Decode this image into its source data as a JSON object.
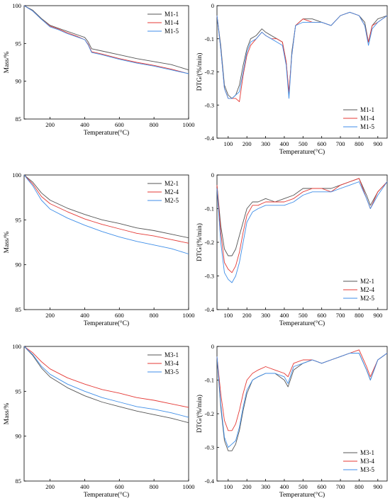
{
  "colors": {
    "series_1": "#555555",
    "series_4": "#e53935",
    "series_5": "#3f8ee8"
  },
  "chart_data": [
    {
      "type": "line",
      "title": "",
      "xlabel": "Temperature(°C)",
      "ylabel": "Mass/%",
      "xlim": [
        50,
        1000
      ],
      "ylim": [
        85,
        100
      ],
      "xticks": [
        200,
        400,
        600,
        800,
        1000
      ],
      "yticks": [
        85,
        90,
        95,
        100
      ],
      "legend_position": "top-right",
      "grid": false,
      "series": [
        {
          "name": "M1-1",
          "color_key": "series_1",
          "x": [
            50,
            100,
            150,
            200,
            250,
            300,
            350,
            400,
            420,
            440,
            500,
            600,
            700,
            800,
            900,
            1000
          ],
          "y": [
            100,
            99.4,
            98.3,
            97.4,
            97.0,
            96.6,
            96.2,
            95.8,
            95.2,
            94.3,
            94.0,
            93.5,
            93.0,
            92.6,
            92.2,
            91.5
          ]
        },
        {
          "name": "M1-4",
          "color_key": "series_4",
          "x": [
            50,
            100,
            150,
            200,
            250,
            300,
            350,
            400,
            420,
            440,
            500,
            600,
            700,
            800,
            900,
            1000
          ],
          "y": [
            100,
            99.3,
            98.2,
            97.3,
            96.9,
            96.4,
            96.0,
            95.5,
            94.9,
            93.9,
            93.6,
            93.0,
            92.5,
            92.1,
            91.6,
            91.0
          ]
        },
        {
          "name": "M1-5",
          "color_key": "series_5",
          "x": [
            50,
            100,
            150,
            200,
            250,
            300,
            350,
            400,
            420,
            440,
            500,
            600,
            700,
            800,
            900,
            1000
          ],
          "y": [
            100,
            99.3,
            98.2,
            97.2,
            96.8,
            96.3,
            95.9,
            95.5,
            94.8,
            93.8,
            93.5,
            92.9,
            92.4,
            92.0,
            91.5,
            91.0
          ]
        }
      ]
    },
    {
      "type": "line",
      "title": "",
      "xlabel": "Temperature(°C)",
      "ylabel": "DTG/(%/min)",
      "xlim": [
        40,
        950
      ],
      "ylim": [
        -0.4,
        0
      ],
      "xticks": [
        100,
        200,
        300,
        400,
        500,
        600,
        700,
        800,
        900
      ],
      "yticks": [
        0,
        -0.1,
        -0.2,
        -0.3,
        -0.4
      ],
      "legend_position": "bottom-right",
      "grid": false,
      "series": [
        {
          "name": "M1-1",
          "color_key": "series_1",
          "x": [
            40,
            60,
            80,
            100,
            120,
            140,
            160,
            180,
            200,
            220,
            250,
            280,
            300,
            330,
            360,
            390,
            410,
            425,
            440,
            460,
            500,
            550,
            600,
            650,
            700,
            750,
            800,
            830,
            850,
            870,
            900,
            950
          ],
          "y": [
            -0.03,
            -0.12,
            -0.24,
            -0.27,
            -0.28,
            -0.27,
            -0.24,
            -0.18,
            -0.13,
            -0.1,
            -0.09,
            -0.07,
            -0.08,
            -0.09,
            -0.1,
            -0.11,
            -0.17,
            -0.27,
            -0.14,
            -0.06,
            -0.04,
            -0.04,
            -0.05,
            -0.06,
            -0.03,
            -0.02,
            -0.03,
            -0.05,
            -0.11,
            -0.06,
            -0.04,
            -0.03
          ]
        },
        {
          "name": "M1-4",
          "color_key": "series_4",
          "x": [
            40,
            60,
            80,
            100,
            120,
            140,
            160,
            180,
            200,
            220,
            250,
            280,
            300,
            330,
            360,
            390,
            410,
            425,
            440,
            460,
            500,
            550,
            600,
            650,
            700,
            750,
            800,
            830,
            850,
            870,
            900,
            950
          ],
          "y": [
            -0.03,
            -0.13,
            -0.25,
            -0.28,
            -0.28,
            -0.28,
            -0.29,
            -0.21,
            -0.15,
            -0.12,
            -0.1,
            -0.08,
            -0.09,
            -0.1,
            -0.1,
            -0.11,
            -0.17,
            -0.26,
            -0.15,
            -0.06,
            -0.04,
            -0.05,
            -0.05,
            -0.06,
            -0.03,
            -0.02,
            -0.03,
            -0.06,
            -0.11,
            -0.06,
            -0.05,
            -0.03
          ]
        },
        {
          "name": "M1-5",
          "color_key": "series_5",
          "x": [
            40,
            60,
            80,
            100,
            120,
            140,
            160,
            180,
            200,
            220,
            250,
            280,
            300,
            330,
            360,
            390,
            410,
            425,
            440,
            460,
            500,
            550,
            600,
            650,
            700,
            750,
            800,
            830,
            850,
            870,
            900,
            950
          ],
          "y": [
            -0.03,
            -0.13,
            -0.25,
            -0.28,
            -0.28,
            -0.27,
            -0.26,
            -0.2,
            -0.14,
            -0.11,
            -0.1,
            -0.08,
            -0.09,
            -0.1,
            -0.11,
            -0.12,
            -0.18,
            -0.28,
            -0.15,
            -0.06,
            -0.05,
            -0.05,
            -0.05,
            -0.06,
            -0.03,
            -0.02,
            -0.03,
            -0.06,
            -0.12,
            -0.07,
            -0.05,
            -0.03
          ]
        }
      ]
    },
    {
      "type": "line",
      "title": "",
      "xlabel": "Temperature(°C)",
      "ylabel": "Mass/%",
      "xlim": [
        50,
        1000
      ],
      "ylim": [
        85,
        100
      ],
      "xticks": [
        200,
        400,
        600,
        800,
        1000
      ],
      "yticks": [
        85,
        90,
        95,
        100
      ],
      "legend_position": "top-right",
      "grid": false,
      "series": [
        {
          "name": "M2-1",
          "color_key": "series_1",
          "x": [
            50,
            100,
            150,
            200,
            300,
            400,
            500,
            600,
            700,
            800,
            900,
            1000
          ],
          "y": [
            100,
            99.2,
            98.0,
            97.2,
            96.3,
            95.6,
            95.0,
            94.6,
            94.1,
            93.8,
            93.4,
            93.0
          ]
        },
        {
          "name": "M2-4",
          "color_key": "series_4",
          "x": [
            50,
            100,
            150,
            200,
            300,
            400,
            500,
            600,
            700,
            800,
            900,
            1000
          ],
          "y": [
            100,
            99.0,
            97.6,
            96.8,
            95.9,
            95.1,
            94.5,
            94.0,
            93.5,
            93.2,
            92.8,
            92.4
          ]
        },
        {
          "name": "M2-5",
          "color_key": "series_5",
          "x": [
            50,
            100,
            150,
            200,
            300,
            400,
            500,
            600,
            700,
            800,
            900,
            1000
          ],
          "y": [
            100,
            98.8,
            97.2,
            96.2,
            95.2,
            94.4,
            93.7,
            93.1,
            92.6,
            92.2,
            91.8,
            91.2
          ]
        }
      ]
    },
    {
      "type": "line",
      "title": "",
      "xlabel": "Temperature(°C)",
      "ylabel": "DTG/(%/min)",
      "xlim": [
        40,
        950
      ],
      "ylim": [
        -0.4,
        0
      ],
      "xticks": [
        100,
        200,
        300,
        400,
        500,
        600,
        700,
        800,
        900
      ],
      "yticks": [
        0,
        -0.1,
        -0.2,
        -0.3,
        -0.4
      ],
      "legend_position": "bottom-right",
      "grid": false,
      "series": [
        {
          "name": "M2-1",
          "color_key": "series_1",
          "x": [
            40,
            60,
            80,
            100,
            120,
            140,
            160,
            180,
            200,
            230,
            260,
            300,
            350,
            400,
            450,
            500,
            550,
            600,
            650,
            700,
            750,
            800,
            840,
            860,
            900,
            950
          ],
          "y": [
            -0.03,
            -0.15,
            -0.22,
            -0.24,
            -0.24,
            -0.22,
            -0.18,
            -0.14,
            -0.1,
            -0.08,
            -0.08,
            -0.07,
            -0.08,
            -0.07,
            -0.06,
            -0.04,
            -0.04,
            -0.04,
            -0.04,
            -0.03,
            -0.02,
            -0.01,
            -0.06,
            -0.09,
            -0.05,
            -0.02
          ]
        },
        {
          "name": "M2-4",
          "color_key": "series_4",
          "x": [
            40,
            60,
            80,
            100,
            120,
            140,
            160,
            180,
            200,
            230,
            260,
            300,
            350,
            400,
            450,
            500,
            550,
            600,
            650,
            700,
            750,
            800,
            840,
            860,
            900,
            950
          ],
          "y": [
            -0.03,
            -0.17,
            -0.26,
            -0.28,
            -0.29,
            -0.27,
            -0.23,
            -0.17,
            -0.12,
            -0.09,
            -0.09,
            -0.08,
            -0.08,
            -0.08,
            -0.07,
            -0.05,
            -0.04,
            -0.04,
            -0.05,
            -0.03,
            -0.02,
            -0.01,
            -0.07,
            -0.1,
            -0.05,
            -0.02
          ]
        },
        {
          "name": "M2-5",
          "color_key": "series_5",
          "x": [
            40,
            60,
            80,
            100,
            120,
            140,
            160,
            180,
            200,
            230,
            260,
            300,
            350,
            400,
            450,
            500,
            550,
            600,
            650,
            700,
            750,
            800,
            840,
            860,
            900,
            950
          ],
          "y": [
            -0.04,
            -0.2,
            -0.29,
            -0.31,
            -0.32,
            -0.3,
            -0.26,
            -0.2,
            -0.14,
            -0.11,
            -0.1,
            -0.09,
            -0.09,
            -0.09,
            -0.08,
            -0.06,
            -0.05,
            -0.05,
            -0.05,
            -0.04,
            -0.03,
            -0.02,
            -0.07,
            -0.1,
            -0.06,
            -0.02
          ]
        }
      ]
    },
    {
      "type": "line",
      "title": "",
      "xlabel": "Temperature(°C)",
      "ylabel": "Mass/%",
      "xlim": [
        50,
        1000
      ],
      "ylim": [
        85,
        100
      ],
      "xticks": [
        200,
        400,
        600,
        800,
        1000
      ],
      "yticks": [
        85,
        90,
        95,
        100
      ],
      "legend_position": "top-right",
      "grid": false,
      "series": [
        {
          "name": "M3-1",
          "color_key": "series_1",
          "x": [
            50,
            100,
            150,
            200,
            300,
            400,
            500,
            600,
            700,
            800,
            900,
            1000
          ],
          "y": [
            100,
            99.0,
            97.6,
            96.6,
            95.4,
            94.5,
            93.8,
            93.3,
            92.8,
            92.4,
            92.0,
            91.5
          ]
        },
        {
          "name": "M3-4",
          "color_key": "series_4",
          "x": [
            50,
            100,
            150,
            200,
            300,
            400,
            500,
            600,
            700,
            800,
            900,
            1000
          ],
          "y": [
            100,
            99.3,
            98.3,
            97.5,
            96.5,
            95.8,
            95.2,
            94.8,
            94.3,
            94.0,
            93.6,
            93.2
          ]
        },
        {
          "name": "M3-5",
          "color_key": "series_5",
          "x": [
            50,
            100,
            150,
            200,
            300,
            400,
            500,
            600,
            700,
            800,
            900,
            1000
          ],
          "y": [
            100,
            99.1,
            97.8,
            96.9,
            95.8,
            95.0,
            94.3,
            93.8,
            93.3,
            93.0,
            92.6,
            92.1
          ]
        }
      ]
    },
    {
      "type": "line",
      "title": "",
      "xlabel": "Temperature(°C)",
      "ylabel": "DTG/(%/min)",
      "xlim": [
        40,
        950
      ],
      "ylim": [
        -0.4,
        0
      ],
      "xticks": [
        100,
        200,
        300,
        400,
        500,
        600,
        700,
        800,
        900
      ],
      "yticks": [
        0,
        -0.1,
        -0.2,
        -0.3,
        -0.4
      ],
      "legend_position": "bottom-right",
      "grid": false,
      "series": [
        {
          "name": "M3-1",
          "color_key": "series_1",
          "x": [
            40,
            60,
            80,
            100,
            120,
            140,
            160,
            180,
            200,
            230,
            260,
            300,
            350,
            400,
            420,
            450,
            500,
            550,
            600,
            650,
            700,
            750,
            800,
            840,
            860,
            900,
            950
          ],
          "y": [
            -0.03,
            -0.18,
            -0.28,
            -0.31,
            -0.31,
            -0.29,
            -0.25,
            -0.19,
            -0.14,
            -0.1,
            -0.09,
            -0.08,
            -0.08,
            -0.1,
            -0.12,
            -0.07,
            -0.05,
            -0.04,
            -0.05,
            -0.04,
            -0.03,
            -0.02,
            -0.02,
            -0.07,
            -0.1,
            -0.04,
            -0.02
          ]
        },
        {
          "name": "M3-4",
          "color_key": "series_4",
          "x": [
            40,
            60,
            80,
            100,
            120,
            140,
            160,
            180,
            200,
            230,
            260,
            300,
            350,
            400,
            420,
            450,
            500,
            550,
            600,
            650,
            700,
            750,
            800,
            840,
            860,
            900,
            950
          ],
          "y": [
            -0.03,
            -0.14,
            -0.22,
            -0.25,
            -0.25,
            -0.23,
            -0.19,
            -0.14,
            -0.1,
            -0.08,
            -0.07,
            -0.06,
            -0.07,
            -0.08,
            -0.09,
            -0.05,
            -0.04,
            -0.04,
            -0.05,
            -0.04,
            -0.03,
            -0.02,
            -0.01,
            -0.06,
            -0.09,
            -0.04,
            -0.02
          ]
        },
        {
          "name": "M3-5",
          "color_key": "series_5",
          "x": [
            40,
            60,
            80,
            100,
            120,
            140,
            160,
            180,
            200,
            230,
            260,
            300,
            350,
            400,
            420,
            450,
            500,
            550,
            600,
            650,
            700,
            750,
            800,
            840,
            860,
            900,
            950
          ],
          "y": [
            -0.03,
            -0.17,
            -0.27,
            -0.3,
            -0.29,
            -0.28,
            -0.24,
            -0.18,
            -0.13,
            -0.1,
            -0.09,
            -0.08,
            -0.08,
            -0.09,
            -0.11,
            -0.06,
            -0.05,
            -0.04,
            -0.05,
            -0.04,
            -0.03,
            -0.02,
            -0.02,
            -0.07,
            -0.1,
            -0.04,
            -0.02
          ]
        }
      ]
    }
  ]
}
